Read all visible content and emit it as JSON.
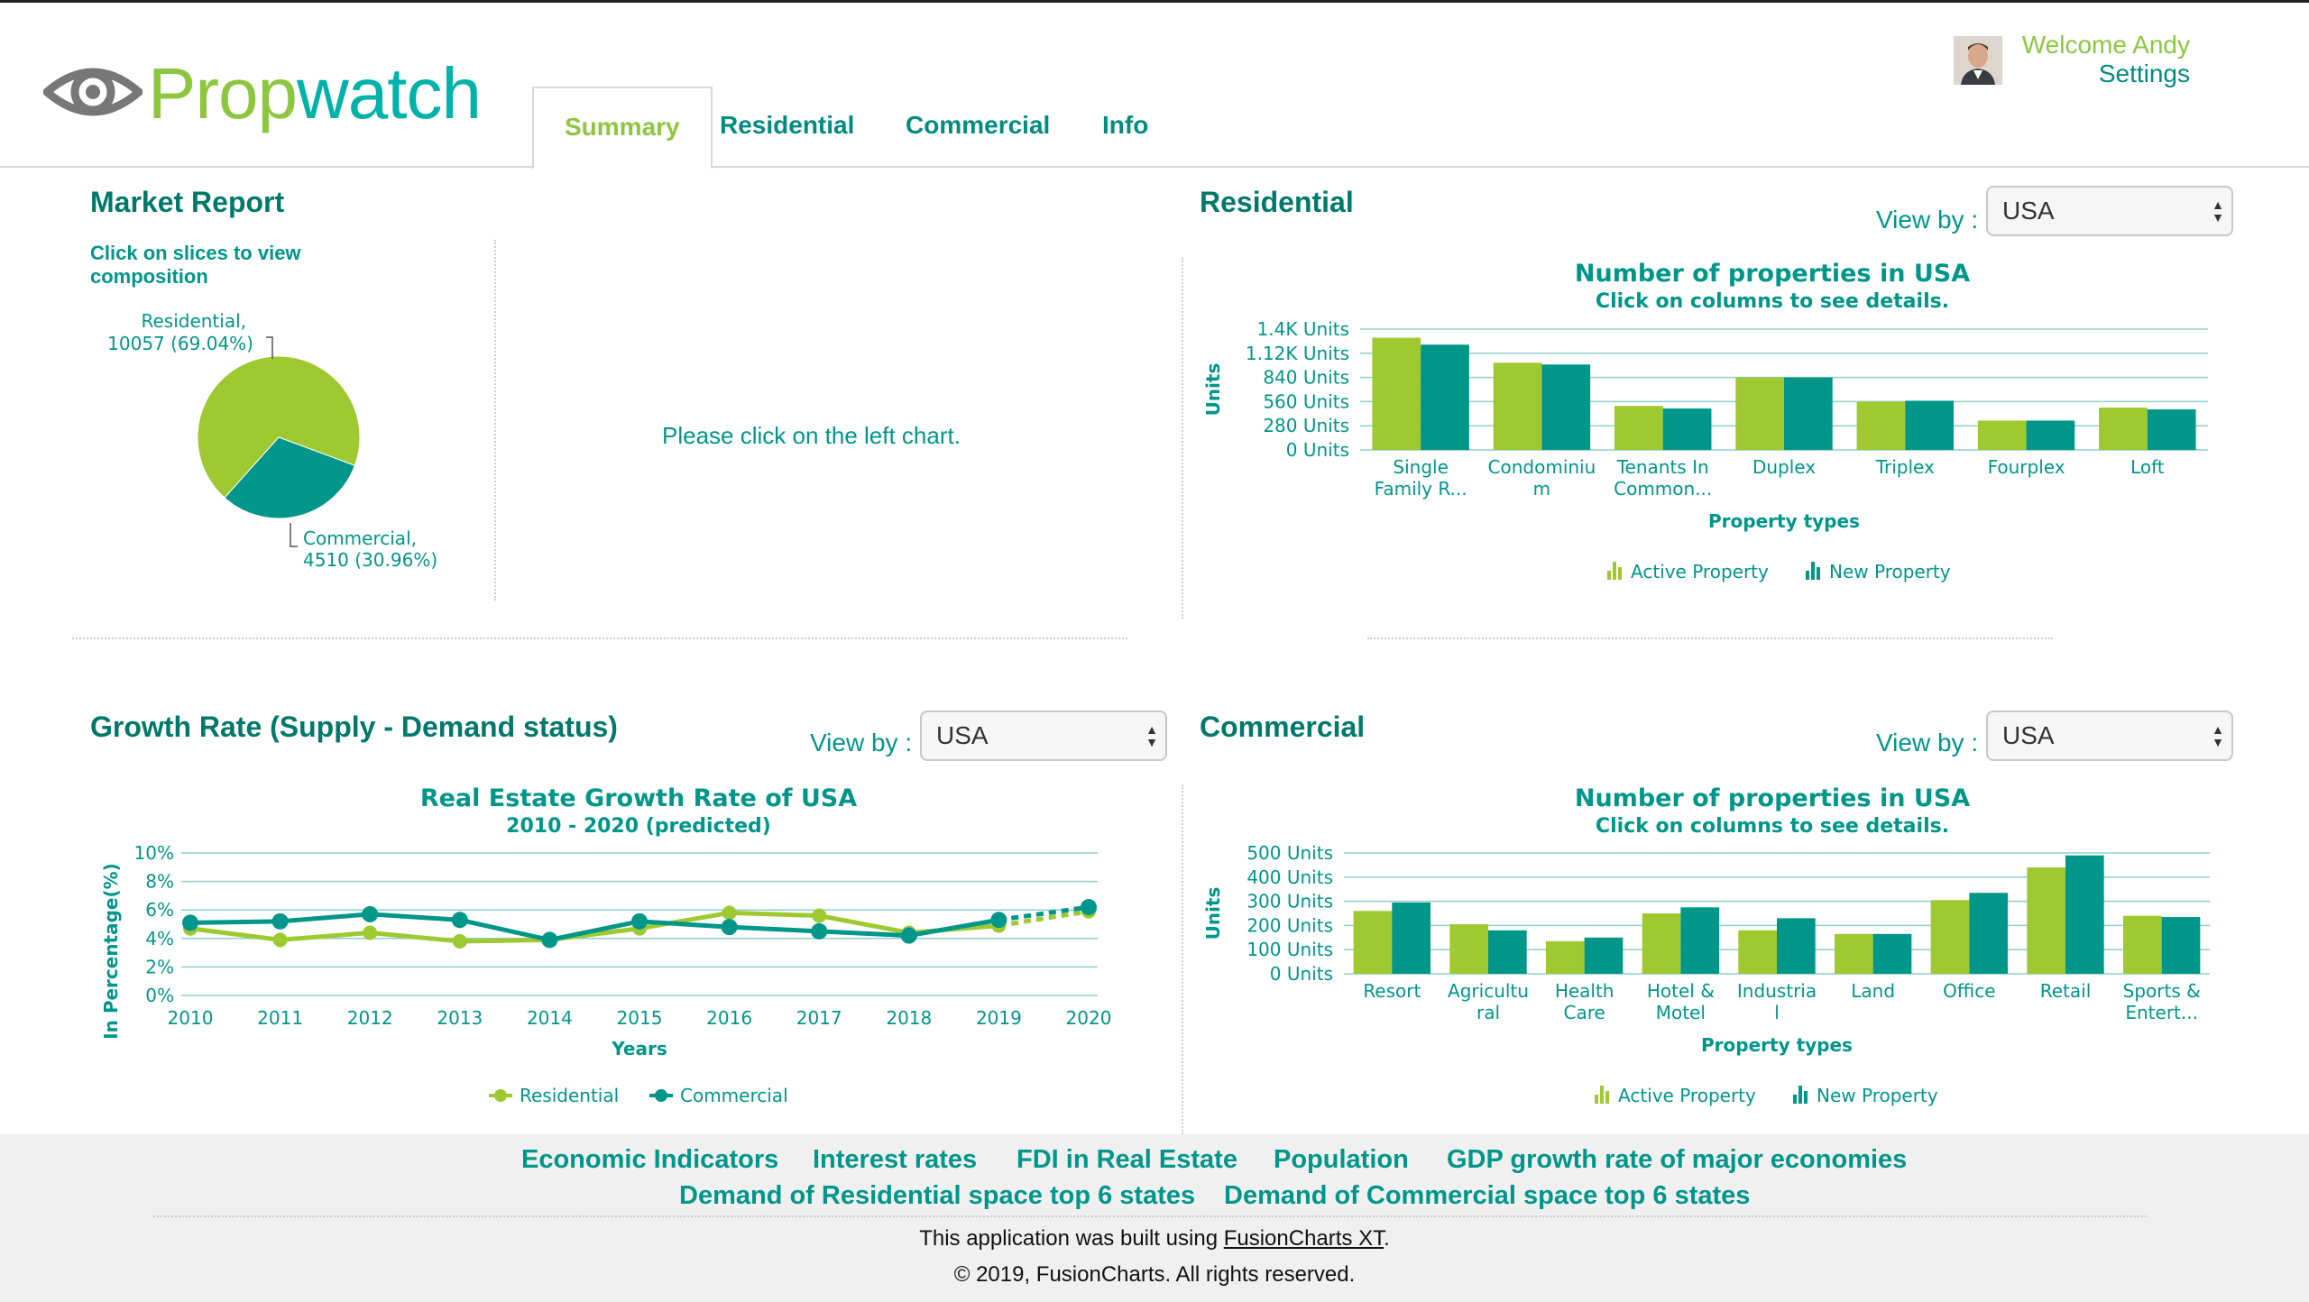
{
  "header": {
    "brand": {
      "part1": "Prop",
      "part2": "watch"
    },
    "tabs": [
      {
        "label": "Summary",
        "active": true
      },
      {
        "label": "Residential",
        "active": false
      },
      {
        "label": "Commercial",
        "active": false
      },
      {
        "label": "Info",
        "active": false
      }
    ],
    "user": {
      "welcome": "Welcome Andy",
      "settings": "Settings"
    }
  },
  "colors": {
    "active": "#8dc63f",
    "new": "#00968a",
    "text": "#00968a",
    "title": "#00796b"
  },
  "market_report": {
    "title": "Market Report",
    "hint": "Click on slices to view composition",
    "placeholder": "Please click on the left chart.",
    "pie": {
      "slices": [
        {
          "label": "Residential,",
          "detail": "10057 (69.04%)",
          "value": 10057,
          "percent": 69.04,
          "color": "#9ec930"
        },
        {
          "label": "Commercial,",
          "detail": "4510 (30.96%)",
          "value": 4510,
          "percent": 30.96,
          "color": "#00968a"
        }
      ]
    }
  },
  "residential": {
    "title": "Residential",
    "view_by_label": "View by :",
    "view_by_value": "USA",
    "chart_title": "Number of properties in USA",
    "chart_subtitle": "Click on columns to see details."
  },
  "growth": {
    "title": "Growth Rate (Supply - Demand status)",
    "view_by_label": "View by :",
    "view_by_value": "USA",
    "chart_title": "Real Estate Growth Rate of USA",
    "chart_subtitle": "2010 - 2020 (predicted)"
  },
  "commercial": {
    "title": "Commercial",
    "view_by_label": "View by :",
    "view_by_value": "USA",
    "chart_title": "Number of properties in USA",
    "chart_subtitle": "Click on columns to see details."
  },
  "chart_data": [
    {
      "id": "residential",
      "type": "bar",
      "title": "Number of properties in USA",
      "subtitle": "Click on columns to see details.",
      "xlabel": "Property types",
      "ylabel": "Units",
      "ylim": [
        0,
        1400
      ],
      "yticks": [
        0,
        280,
        560,
        840,
        1120,
        1400
      ],
      "ytick_labels": [
        "0 Units",
        "280 Units",
        "560 Units",
        "840 Units",
        "1.12K Units",
        "1.4K Units"
      ],
      "grid": true,
      "legend": "bottom",
      "categories": [
        "Single Family R...",
        "Condominium",
        "Tenants In Common...",
        "Duplex",
        "Triplex",
        "Fourplex",
        "Loft"
      ],
      "category_lines": [
        [
          "Single",
          "Family R..."
        ],
        [
          "Condominiu",
          "m"
        ],
        [
          "Tenants In",
          "Common..."
        ],
        [
          "Duplex"
        ],
        [
          "Triplex"
        ],
        [
          "Fourplex"
        ],
        [
          "Loft"
        ]
      ],
      "series": [
        {
          "name": "Active Property",
          "color": "#9ec930",
          "values": [
            1300,
            1010,
            510,
            840,
            560,
            340,
            490
          ]
        },
        {
          "name": "New Property",
          "color": "#00968a",
          "values": [
            1220,
            990,
            480,
            840,
            570,
            340,
            470
          ]
        }
      ]
    },
    {
      "id": "growth",
      "type": "line",
      "title": "Real Estate Growth Rate of USA",
      "subtitle": "2010 - 2020 (predicted)",
      "xlabel": "Years",
      "ylabel": "In Percentage(%)",
      "ylim": [
        0,
        10
      ],
      "yticks": [
        0,
        2,
        4,
        6,
        8,
        10
      ],
      "ytick_labels": [
        "0%",
        "2%",
        "4%",
        "6%",
        "8%",
        "10%"
      ],
      "grid": true,
      "legend": "bottom",
      "x": [
        "2010",
        "2011",
        "2012",
        "2013",
        "2014",
        "2015",
        "2016",
        "2017",
        "2018",
        "2019",
        "2020"
      ],
      "predicted_from": "2019",
      "series": [
        {
          "name": "Residential",
          "color": "#9ec930",
          "values": [
            4.7,
            3.9,
            4.4,
            3.8,
            3.9,
            4.7,
            5.8,
            5.6,
            4.4,
            4.9,
            5.9
          ]
        },
        {
          "name": "Commercial",
          "color": "#00968a",
          "values": [
            5.1,
            5.2,
            5.7,
            5.3,
            3.9,
            5.2,
            4.8,
            4.5,
            4.2,
            5.3,
            6.2
          ]
        }
      ]
    },
    {
      "id": "commercial",
      "type": "bar",
      "title": "Number of properties in USA",
      "subtitle": "Click on columns to see details.",
      "xlabel": "Property types",
      "ylabel": "Units",
      "ylim": [
        0,
        500
      ],
      "yticks": [
        0,
        100,
        200,
        300,
        400,
        500
      ],
      "ytick_labels": [
        "0 Units",
        "100 Units",
        "200 Units",
        "300 Units",
        "400 Units",
        "500 Units"
      ],
      "grid": true,
      "legend": "bottom",
      "categories": [
        "Resort",
        "Agricultural",
        "Health Care",
        "Hotel & Motel",
        "Industrial",
        "Land",
        "Office",
        "Retail",
        "Sports & Entert..."
      ],
      "category_lines": [
        [
          "Resort"
        ],
        [
          "Agricultu",
          "ral"
        ],
        [
          "Health",
          "Care"
        ],
        [
          "Hotel &",
          "Motel"
        ],
        [
          "Industria",
          "l"
        ],
        [
          "Land"
        ],
        [
          "Office"
        ],
        [
          "Retail"
        ],
        [
          "Sports &",
          "Entert..."
        ]
      ],
      "series": [
        {
          "name": "Active Property",
          "color": "#9ec930",
          "values": [
            260,
            205,
            135,
            250,
            180,
            165,
            305,
            440,
            240
          ]
        },
        {
          "name": "New Property",
          "color": "#00968a",
          "values": [
            295,
            180,
            150,
            275,
            230,
            165,
            335,
            490,
            235
          ]
        }
      ]
    }
  ],
  "footer": {
    "links_row1": [
      "Economic Indicators",
      "Interest rates",
      "FDI in Real Estate",
      "Population",
      "GDP growth rate of major economies"
    ],
    "links_row2": [
      "Demand of Residential space top 6 states",
      "Demand of Commercial space top 6 states"
    ],
    "built_prefix": "This application was built using ",
    "built_link": "FusionCharts XT",
    "built_suffix": ".",
    "copyright": "© 2019, FusionCharts. All rights reserved."
  }
}
